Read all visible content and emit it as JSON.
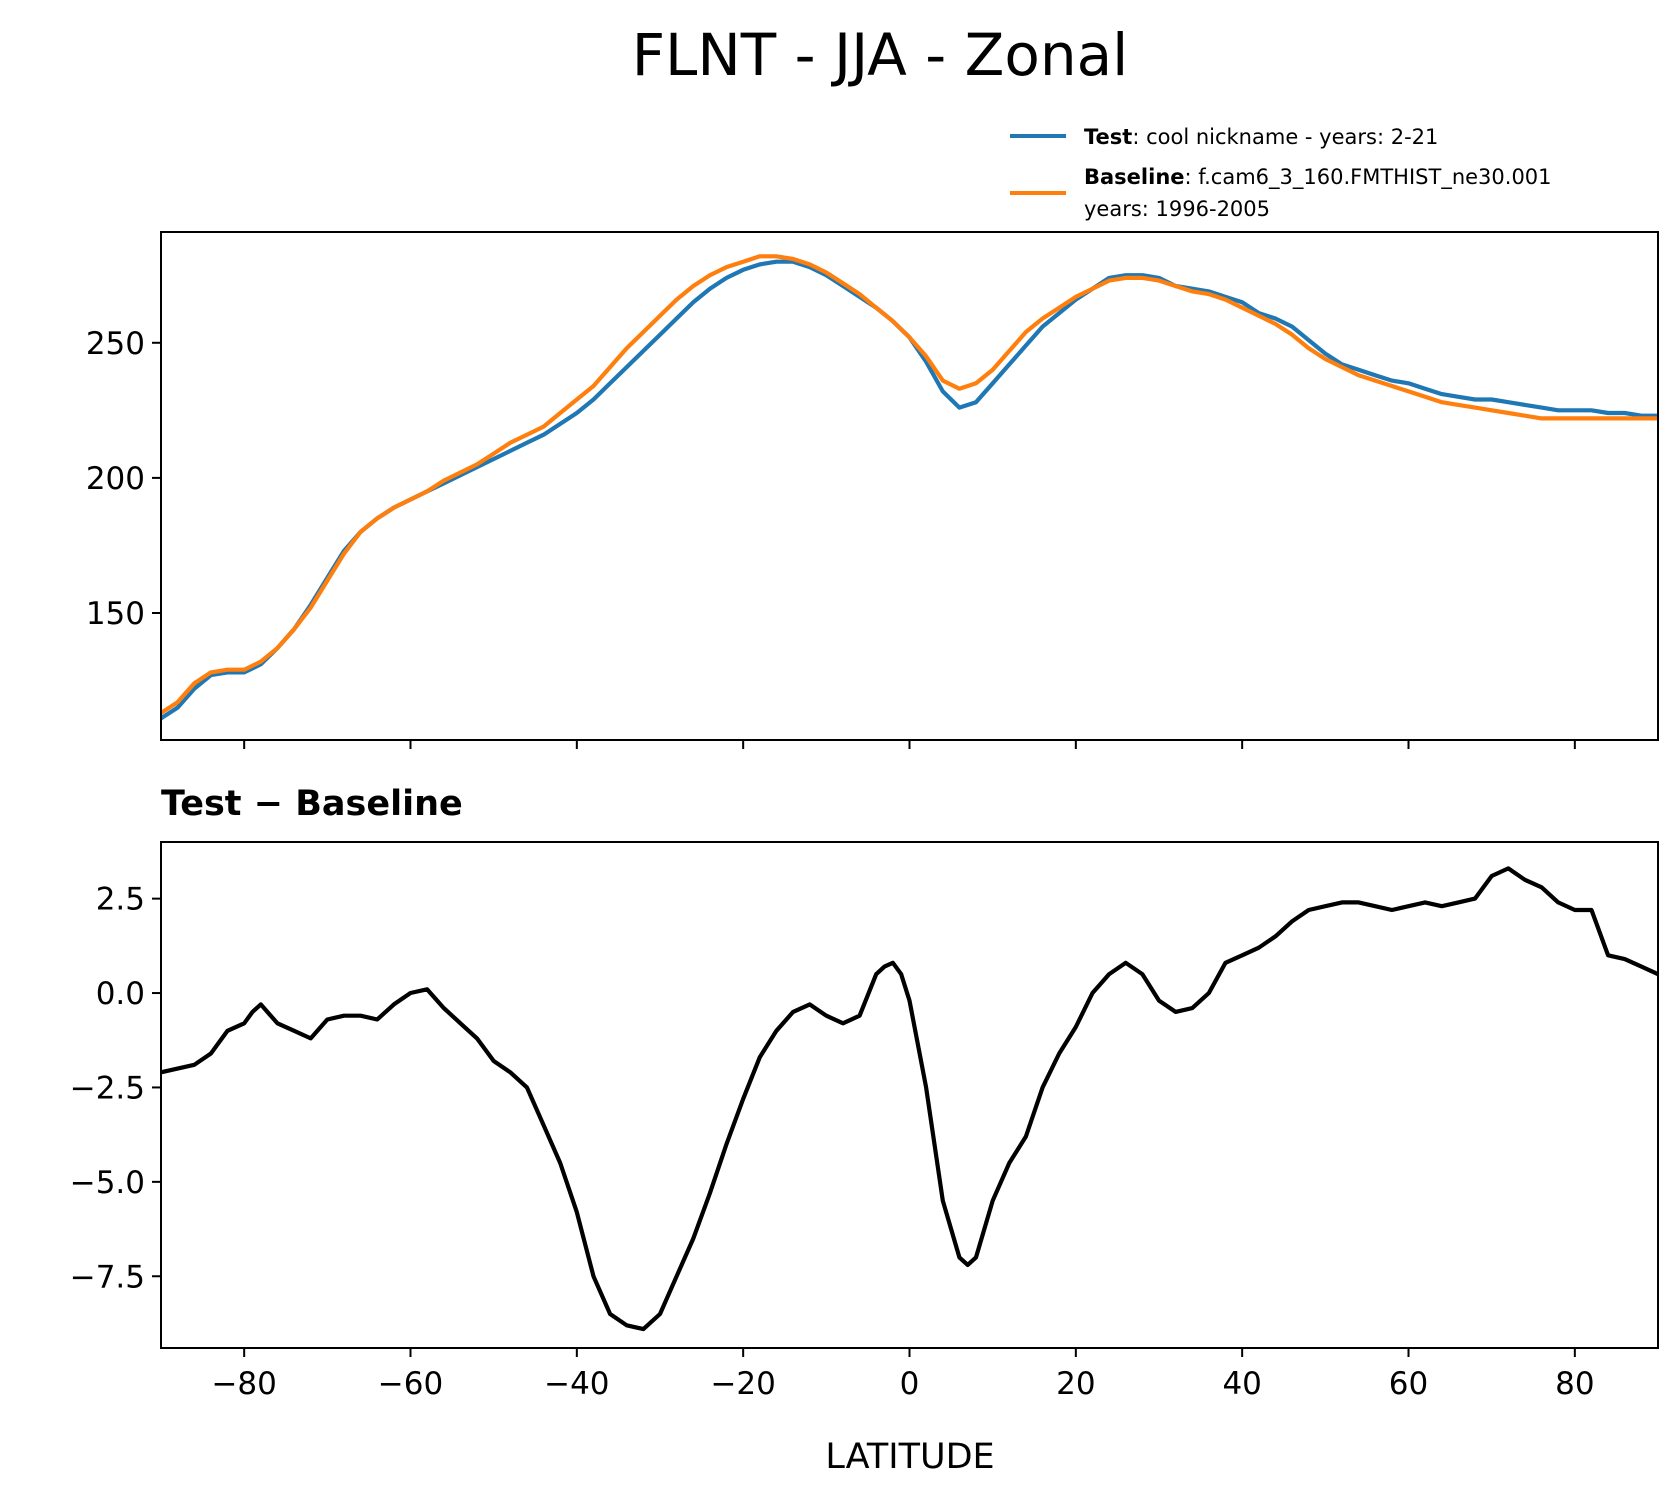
{
  "figure_title": "FLNT - JJA - Zonal",
  "legend": {
    "test_label": "Test",
    "test_text": ": cool nickname - years: 2-21",
    "baseline_label": "Baseline",
    "baseline_text": ": f.cam6_3_160.FMTHIST_ne30.001",
    "baseline_text2": "years: 1996-2005"
  },
  "colors": {
    "test": "#1f77b4",
    "baseline": "#ff7f0e",
    "difference": "#000000"
  },
  "chart_data": [
    {
      "type": "line",
      "title": "",
      "xlabel": "",
      "ylabel": "",
      "xlim": [
        -90,
        90
      ],
      "ylim": [
        103,
        291
      ],
      "yticks": [
        150,
        200,
        250
      ],
      "xticks": [
        -80,
        -60,
        -40,
        -20,
        0,
        20,
        40,
        60,
        80
      ],
      "grid": false,
      "legend_position": "above-right",
      "x": [
        -90,
        -88,
        -86,
        -84,
        -82,
        -80,
        -78,
        -76,
        -74,
        -72,
        -70,
        -68,
        -66,
        -64,
        -62,
        -60,
        -58,
        -56,
        -54,
        -52,
        -50,
        -48,
        -46,
        -44,
        -42,
        -40,
        -38,
        -36,
        -34,
        -32,
        -30,
        -28,
        -26,
        -24,
        -22,
        -20,
        -18,
        -16,
        -14,
        -12,
        -10,
        -8,
        -6,
        -4,
        -2,
        0,
        2,
        4,
        6,
        8,
        10,
        12,
        14,
        16,
        18,
        20,
        22,
        24,
        26,
        28,
        30,
        32,
        34,
        36,
        38,
        40,
        42,
        44,
        46,
        48,
        50,
        52,
        54,
        56,
        58,
        60,
        62,
        64,
        66,
        68,
        70,
        72,
        74,
        76,
        78,
        80,
        82,
        84,
        86,
        88,
        90
      ],
      "series": [
        {
          "name": "Test",
          "values": [
            111,
            115,
            122,
            127,
            128,
            128,
            131,
            137,
            144,
            153,
            163,
            173,
            180,
            185,
            189,
            192,
            195,
            198,
            201,
            204,
            207,
            210,
            213,
            216,
            220,
            224,
            229,
            235,
            241,
            247,
            253,
            259,
            265,
            270,
            274,
            277,
            279,
            280,
            280,
            278,
            275,
            271,
            267,
            263,
            258,
            252,
            243,
            232,
            226,
            228,
            235,
            242,
            249,
            256,
            261,
            266,
            270,
            274,
            275,
            275,
            274,
            271,
            270,
            269,
            267,
            265,
            261,
            259,
            256,
            251,
            246,
            242,
            240,
            238,
            236,
            235,
            233,
            231,
            230,
            229,
            229,
            228,
            227,
            226,
            225,
            225,
            225,
            224,
            224,
            223,
            223
          ]
        },
        {
          "name": "Baseline",
          "values": [
            113,
            117,
            124,
            128,
            129,
            129,
            132,
            137,
            144,
            152,
            162,
            172,
            180,
            185,
            189,
            192,
            195,
            199,
            202,
            205,
            209,
            213,
            216,
            219,
            224,
            229,
            234,
            241,
            248,
            254,
            260,
            266,
            271,
            275,
            278,
            280,
            282,
            282,
            281,
            279,
            276,
            272,
            268,
            263,
            258,
            252,
            245,
            236,
            233,
            235,
            240,
            247,
            254,
            259,
            263,
            267,
            270,
            273,
            274,
            274,
            273,
            271,
            269,
            268,
            266,
            263,
            260,
            257,
            253,
            248,
            244,
            241,
            238,
            236,
            234,
            232,
            230,
            228,
            227,
            226,
            225,
            224,
            223,
            222,
            222,
            222,
            222,
            222,
            222,
            222,
            222
          ]
        }
      ]
    },
    {
      "type": "line",
      "title": "Test − Baseline",
      "xlabel": "LATITUDE",
      "ylabel": "",
      "xlim": [
        -90,
        90
      ],
      "ylim": [
        -9.4,
        4.0
      ],
      "yticks": [
        -7.5,
        -5.0,
        -2.5,
        0.0,
        2.5
      ],
      "ytick_labels": [
        "−7.5",
        "−5.0",
        "−2.5",
        "0.0",
        "2.5"
      ],
      "xticks": [
        -80,
        -60,
        -40,
        -20,
        0,
        20,
        40,
        60,
        80
      ],
      "xtick_labels": [
        "−80",
        "−60",
        "−40",
        "−20",
        "0",
        "20",
        "40",
        "60",
        "80"
      ],
      "grid": false,
      "x": [
        -90,
        -88,
        -86,
        -84,
        -82,
        -80,
        -79,
        -78,
        -76,
        -74,
        -72,
        -70,
        -68,
        -66,
        -64,
        -62,
        -60,
        -58,
        -56,
        -54,
        -52,
        -50,
        -48,
        -46,
        -44,
        -42,
        -40,
        -38,
        -36,
        -34,
        -32,
        -30,
        -28,
        -26,
        -24,
        -22,
        -20,
        -18,
        -16,
        -14,
        -12,
        -10,
        -8,
        -6,
        -4,
        -3,
        -2,
        -1,
        0,
        2,
        4,
        6,
        7,
        8,
        10,
        12,
        14,
        16,
        18,
        20,
        22,
        24,
        26,
        28,
        30,
        32,
        34,
        36,
        38,
        40,
        42,
        44,
        46,
        48,
        50,
        52,
        54,
        56,
        58,
        60,
        62,
        64,
        66,
        68,
        70,
        72,
        74,
        76,
        78,
        80,
        82,
        84,
        86,
        88,
        90
      ],
      "series": [
        {
          "name": "Test − Baseline",
          "values": [
            -2.1,
            -2.0,
            -1.9,
            -1.6,
            -1.0,
            -0.8,
            -0.5,
            -0.3,
            -0.8,
            -1.0,
            -1.2,
            -0.7,
            -0.6,
            -0.6,
            -0.7,
            -0.3,
            0.0,
            0.1,
            -0.4,
            -0.8,
            -1.2,
            -1.8,
            -2.1,
            -2.5,
            -3.5,
            -4.5,
            -5.8,
            -7.5,
            -8.5,
            -8.8,
            -8.9,
            -8.5,
            -7.5,
            -6.5,
            -5.3,
            -4.0,
            -2.8,
            -1.7,
            -1.0,
            -0.5,
            -0.3,
            -0.6,
            -0.8,
            -0.6,
            0.5,
            0.7,
            0.8,
            0.5,
            -0.2,
            -2.5,
            -5.5,
            -7.0,
            -7.2,
            -7.0,
            -5.5,
            -4.5,
            -3.8,
            -2.5,
            -1.6,
            -0.9,
            0.0,
            0.5,
            0.8,
            0.5,
            -0.2,
            -0.5,
            -0.4,
            0.0,
            0.8,
            1.0,
            1.2,
            1.5,
            1.9,
            2.2,
            2.3,
            2.4,
            2.4,
            2.3,
            2.2,
            2.3,
            2.4,
            2.3,
            2.4,
            2.5,
            3.1,
            3.3,
            3.0,
            2.8,
            2.4,
            2.2,
            2.2,
            1.0,
            0.9,
            0.7,
            0.5
          ]
        }
      ]
    }
  ]
}
